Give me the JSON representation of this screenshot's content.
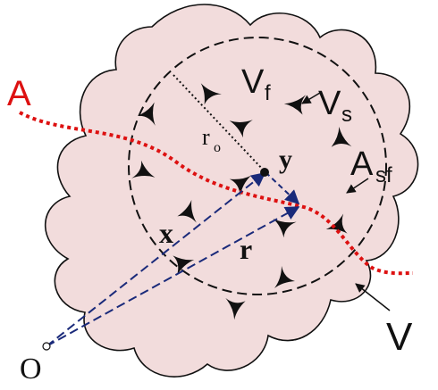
{
  "labels": {
    "curve_a": "A",
    "fluid_volume": "V",
    "fluid_volume_sub": "f",
    "solid_volume": "V",
    "solid_volume_sub": "s",
    "radius": "r",
    "radius_sub": "o",
    "point_y": "y",
    "interface_area": "A",
    "interface_area_sub": "sf",
    "vector_x": "x",
    "vector_r": "r",
    "region_v": "V",
    "origin": "O"
  },
  "colors": {
    "region_fill": "#f2dcdc",
    "curve_red": "#dd1111",
    "vector_blue": "#1a2a7a",
    "ink": "#111111"
  }
}
